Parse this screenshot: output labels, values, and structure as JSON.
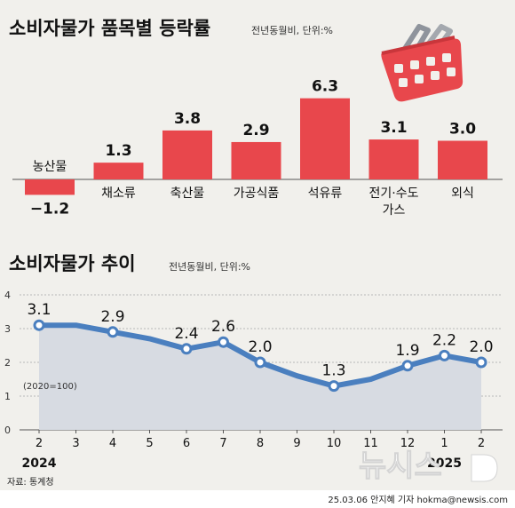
{
  "top_chart": {
    "title": "소비자물가 품목별 등락률",
    "unit": "전년동월비, 단위:%"
  },
  "bottom_chart": {
    "title": "소비자물가 추이",
    "unit": "전년동월비, 단위:%",
    "base_note": "(2020=100)"
  },
  "footer": {
    "source": "자료: 통계청",
    "credit": "25.03.06 안지혜 기자 hokma@newsis.com",
    "watermark": "뉴시스"
  },
  "colors": {
    "bar": "#e8474c",
    "line": "#4a7fbf",
    "area": "#d7dbe2",
    "background": "#f1f0ec"
  },
  "chart_data": [
    {
      "type": "bar",
      "categories": [
        [
          "농산물"
        ],
        [
          "채소류"
        ],
        [
          "축산물"
        ],
        [
          "가공식품"
        ],
        [
          "석유류"
        ],
        [
          "전기·수도",
          "가스"
        ],
        [
          "외식"
        ]
      ],
      "values": [
        -1.2,
        1.3,
        3.8,
        2.9,
        6.3,
        3.1,
        3.0
      ],
      "value_labels": [
        "−1.2",
        "1.3",
        "3.8",
        "2.9",
        "6.3",
        "3.1",
        "3.0"
      ],
      "ylim": [
        -1.5,
        7
      ]
    },
    {
      "type": "line",
      "x": [
        "2",
        "3",
        "4",
        "5",
        "6",
        "7",
        "8",
        "9",
        "10",
        "11",
        "12",
        "1",
        "2"
      ],
      "year_labels": [
        "2024",
        "",
        "",
        "",
        "",
        "",
        "",
        "",
        "",
        "",
        "",
        "2025",
        ""
      ],
      "values": [
        3.1,
        3.1,
        2.9,
        2.7,
        2.4,
        2.6,
        2.0,
        1.6,
        1.3,
        1.5,
        1.9,
        2.2,
        2.0
      ],
      "labeled": [
        0,
        2,
        4,
        5,
        6,
        8,
        10,
        11,
        12
      ],
      "ylim": [
        0,
        4
      ],
      "yticks": [
        0,
        1,
        2,
        3,
        4
      ],
      "grid": true
    }
  ]
}
